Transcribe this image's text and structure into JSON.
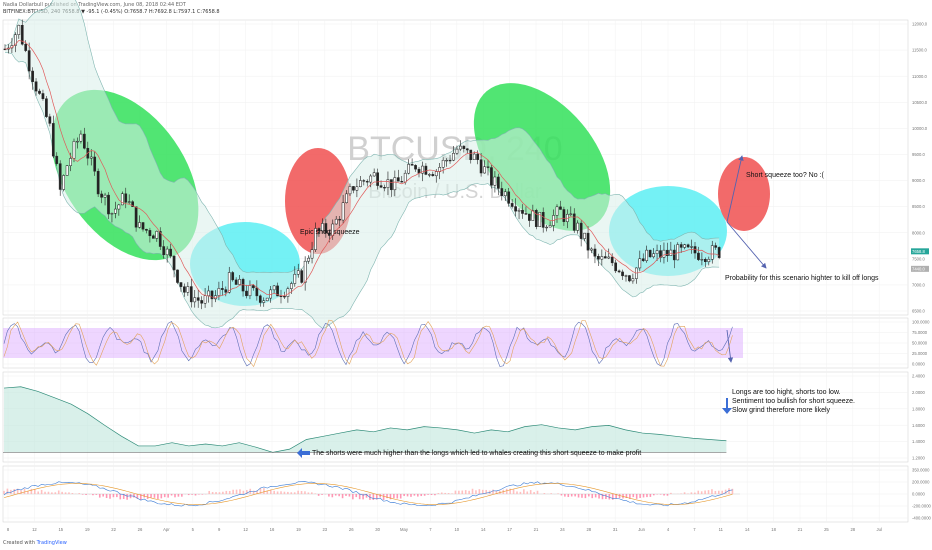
{
  "header": {
    "author_line": "Nadia Dollarbull published on TradingView.com, June 08, 2018 02:44 EDT",
    "symbol_line": "BITFINEX:BTCUSD, 240  7658.8 ▼ -95.1 (-0.45%) O:7658.7 H:7692.8 L:7597.1 C:7658.8"
  },
  "footer": {
    "created_with": "Created with",
    "brand": "TradingView"
  },
  "watermark": {
    "symbol": "BTCUSD, 240",
    "name": "Bitcoin / U.S. Dollar"
  },
  "annotations": {
    "epic": "Epic short squeeze",
    "no": "Short squeeze too? No :(",
    "prob": "Probability for this scenario highter to kill off longs",
    "sentiment": [
      "Longs are too hight, shorts too low.",
      "Sentiment too bullish for short squeeze.",
      "Slow grind therefore more likely"
    ],
    "shorts": "The shorts were much higher than the longs which led to whales creating this short squeeze to make profit"
  },
  "colors": {
    "up": "#26a69a",
    "down": "#ef5350",
    "green_ellipse": "#33e05a",
    "red_ellipse": "#f05050",
    "cyan_ellipse": "#5ceef3",
    "rsi_band": "#d9a5ff",
    "arrow": "#5563b0",
    "sentiment_fill": "#bfe6dc"
  },
  "chart_data": [
    {
      "type": "candlestick",
      "title": "BTCUSD, 240",
      "ylim": [
        6450,
        12050
      ],
      "y_ticks": [
        "12000.0",
        "11500.0",
        "11000.0",
        "10500.0",
        "10000.0",
        "9500.0",
        "9000.0",
        "8500.0",
        "8000.0",
        "7500.0",
        "7000.0",
        "6500.0"
      ],
      "price_tags": [
        "7658.8",
        "7440.0"
      ],
      "x_ticks": [
        "8",
        "12",
        "15",
        "19",
        "22",
        "26",
        "Apr",
        "5",
        "9",
        "12",
        "16",
        "19",
        "23",
        "26",
        "30",
        "May",
        "7",
        "10",
        "14",
        "17",
        "21",
        "24",
        "28",
        "31",
        "Jun",
        "4",
        "7",
        "11",
        "14",
        "18",
        "21",
        "25",
        "28",
        "Jul"
      ],
      "close_path": [
        {
          "t": 0,
          "p": 11500
        },
        {
          "t": 4,
          "p": 11900
        },
        {
          "t": 8,
          "p": 11000
        },
        {
          "t": 13,
          "p": 10000
        },
        {
          "t": 16,
          "p": 8800
        },
        {
          "t": 18,
          "p": 9300
        },
        {
          "t": 22,
          "p": 9900
        },
        {
          "t": 27,
          "p": 8900
        },
        {
          "t": 31,
          "p": 8400
        },
        {
          "t": 35,
          "p": 8700
        },
        {
          "t": 39,
          "p": 8100
        },
        {
          "t": 44,
          "p": 8000
        },
        {
          "t": 48,
          "p": 7500
        },
        {
          "t": 52,
          "p": 6900
        },
        {
          "t": 57,
          "p": 6700
        },
        {
          "t": 61,
          "p": 6800
        },
        {
          "t": 65,
          "p": 7100
        },
        {
          "t": 70,
          "p": 6900
        },
        {
          "t": 75,
          "p": 6800
        },
        {
          "t": 81,
          "p": 6950
        },
        {
          "t": 86,
          "p": 7200
        },
        {
          "t": 90,
          "p": 8000
        },
        {
          "t": 95,
          "p": 8100
        },
        {
          "t": 101,
          "p": 8900
        },
        {
          "t": 107,
          "p": 9100
        },
        {
          "t": 113,
          "p": 8900
        },
        {
          "t": 119,
          "p": 9300
        },
        {
          "t": 125,
          "p": 9200
        },
        {
          "t": 131,
          "p": 9600
        },
        {
          "t": 137,
          "p": 9400
        },
        {
          "t": 141,
          "p": 9000
        },
        {
          "t": 146,
          "p": 8700
        },
        {
          "t": 151,
          "p": 8400
        },
        {
          "t": 156,
          "p": 8200
        },
        {
          "t": 161,
          "p": 8400
        },
        {
          "t": 166,
          "p": 8100
        },
        {
          "t": 171,
          "p": 7500
        },
        {
          "t": 176,
          "p": 7450
        },
        {
          "t": 181,
          "p": 7200
        },
        {
          "t": 186,
          "p": 7550
        },
        {
          "t": 191,
          "p": 7600
        },
        {
          "t": 197,
          "p": 7650
        },
        {
          "t": 203,
          "p": 7620
        },
        {
          "t": 207,
          "p": 7658.8
        }
      ]
    },
    {
      "type": "line",
      "title": "Stoch RSI",
      "ylim": [
        0,
        100
      ],
      "y_ticks": [
        "100.0000",
        "75.0000",
        "50.0000",
        "25.0000",
        "0.0000"
      ],
      "band": [
        20,
        80
      ]
    },
    {
      "type": "area",
      "title": "Long/Short sentiment",
      "ylim": [
        1.05,
        2.45
      ],
      "y_ticks": [
        "2.4000",
        "2.0000",
        "1.8000",
        "1.6000",
        "1.4000",
        "1.2000"
      ],
      "values": [
        2.2,
        2.22,
        2.15,
        2.05,
        1.95,
        1.8,
        1.62,
        1.45,
        1.3,
        1.3,
        1.35,
        1.3,
        1.33,
        1.3,
        1.35,
        1.28,
        1.2,
        1.25,
        1.4,
        1.45,
        1.5,
        1.55,
        1.52,
        1.58,
        1.55,
        1.6,
        1.58,
        1.55,
        1.5,
        1.55,
        1.52,
        1.6,
        1.63,
        1.58,
        1.55,
        1.6,
        1.62,
        1.55,
        1.5,
        1.48,
        1.45,
        1.42,
        1.4,
        1.38
      ]
    },
    {
      "type": "line",
      "title": "MACD",
      "ylim": [
        -450,
        450
      ],
      "y_ticks": [
        "350.0000",
        "200.0000",
        "0.0000",
        "-200.0000",
        "-400.0000"
      ]
    }
  ]
}
